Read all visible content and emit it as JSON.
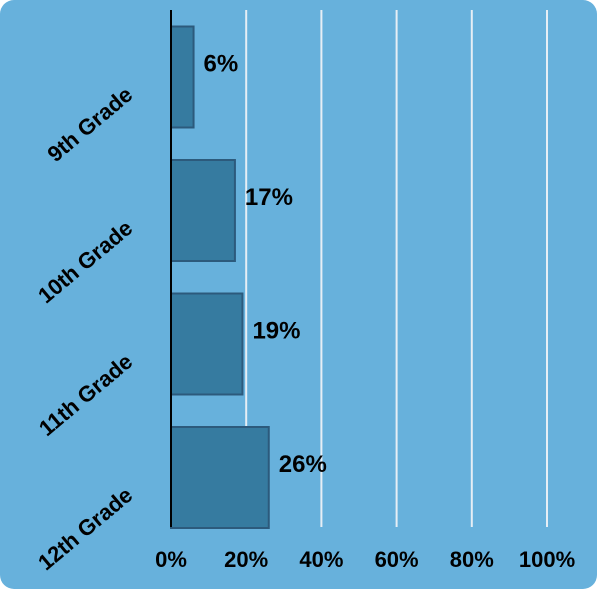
{
  "chart_data": {
    "type": "bar",
    "orientation": "horizontal",
    "categories": [
      "9th Grade",
      "10th Grade",
      "11th Grade",
      "12th Grade"
    ],
    "values": [
      6,
      17,
      19,
      26
    ],
    "data_labels": [
      "6%",
      "17%",
      "19%",
      "26%"
    ],
    "xlim": [
      0,
      100
    ],
    "xticks": [
      0,
      20,
      40,
      60,
      80,
      100
    ],
    "xtick_labels": [
      "0%",
      "20%",
      "40%",
      "60%",
      "80%",
      "100%"
    ],
    "grid": "vertical",
    "title": "",
    "xlabel": "",
    "ylabel": "",
    "colors": {
      "background": "#67b1dc",
      "bar_fill": "#367ba0",
      "bar_stroke": "#2c5a7c",
      "gridline": "#e6eef5",
      "axis": "#000000"
    }
  }
}
